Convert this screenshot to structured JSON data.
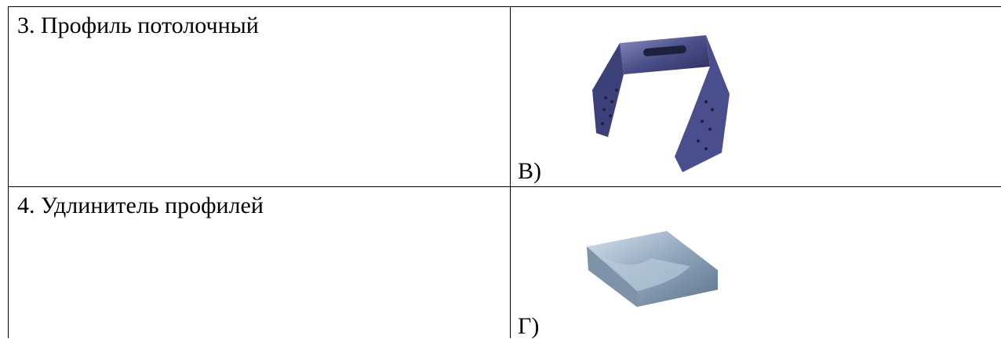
{
  "table": {
    "rows": [
      [
        "3. Профиль потолочный",
        "В)"
      ],
      [
        "4. Удлинитель профилей",
        "Г)"
      ]
    ]
  }
}
